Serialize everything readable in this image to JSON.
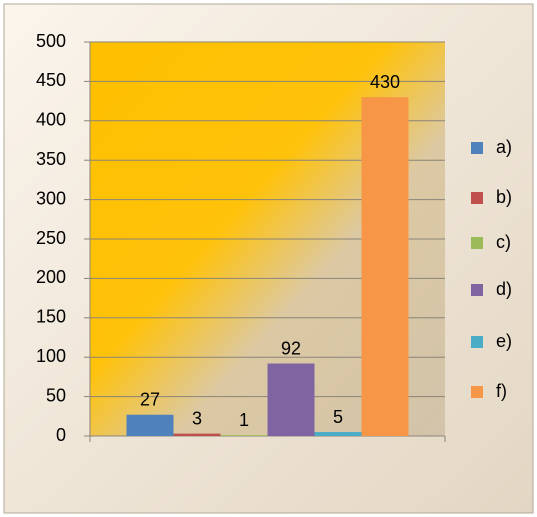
{
  "chart_data": {
    "type": "bar",
    "categories": [
      null
    ],
    "series": [
      {
        "name": "a)",
        "color": "#4f81bd",
        "values": [
          27
        ]
      },
      {
        "name": "b)",
        "color": "#c0504d",
        "values": [
          3
        ]
      },
      {
        "name": "c)",
        "color": "#9bbb59",
        "values": [
          1
        ]
      },
      {
        "name": "d)",
        "color": "#8064a2",
        "values": [
          92
        ]
      },
      {
        "name": "e)",
        "color": "#4bacc6",
        "values": [
          5
        ]
      },
      {
        "name": "f)",
        "color": "#f79646",
        "values": [
          430
        ]
      }
    ],
    "ylim": [
      0,
      500
    ],
    "yticks": [
      0,
      50,
      100,
      150,
      200,
      250,
      300,
      350,
      400,
      450,
      500
    ],
    "grid": true,
    "data_labels": true,
    "legend": "right"
  }
}
